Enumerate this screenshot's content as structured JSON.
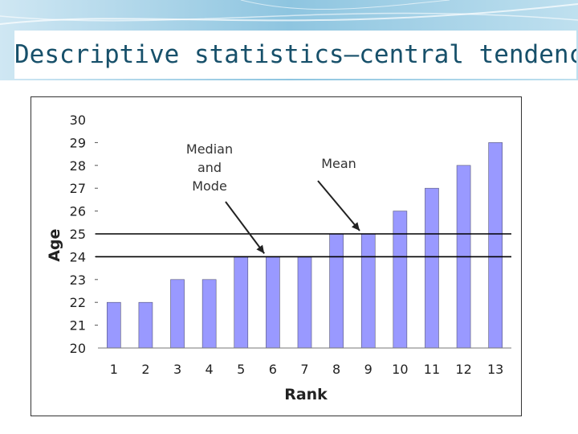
{
  "slide": {
    "title": "Descriptive statistics—central tendency"
  },
  "chart_data": {
    "type": "bar",
    "title": "",
    "xlabel": "Rank",
    "ylabel": "Age",
    "categories": [
      "1",
      "2",
      "3",
      "4",
      "5",
      "6",
      "7",
      "8",
      "9",
      "10",
      "11",
      "12",
      "13"
    ],
    "values": [
      22,
      22,
      23,
      23,
      24,
      24,
      24,
      25,
      25,
      26,
      27,
      28,
      29
    ],
    "ylim": [
      20,
      30
    ],
    "yticks": [
      "20",
      "21",
      "22",
      "23",
      "24",
      "25",
      "26",
      "27",
      "28",
      "29",
      "30"
    ],
    "bar_color": "#9999ff",
    "grid": false,
    "reference_lines": [
      {
        "value": 24,
        "label": "Median and Mode"
      },
      {
        "value": 25,
        "label": "Mean"
      }
    ],
    "annotations": [
      {
        "lines": [
          "Median",
          "and",
          "Mode"
        ],
        "points_to_category": "6",
        "points_to_value": 24
      },
      {
        "lines": [
          "Mean"
        ],
        "points_to_category": "9",
        "points_to_value": 25
      }
    ]
  }
}
